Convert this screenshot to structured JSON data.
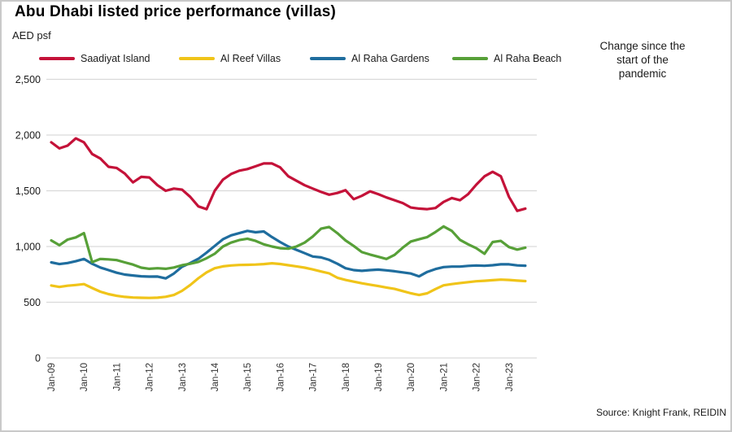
{
  "header": {
    "title": "Abu Dhabi listed price performance (villas)",
    "units_label": "AED psf",
    "note": "Change since the start of the pandemic"
  },
  "footer": {
    "source": "Source: Knight Frank, REIDIN"
  },
  "chart_data": {
    "type": "line",
    "title": "Abu Dhabi listed price performance (villas)",
    "ylabel": "AED psf",
    "ylim": [
      0,
      2500
    ],
    "grid": "horizontal",
    "legend_position": "top",
    "frequency": "quarterly",
    "annotation": "Change since the start of the pandemic",
    "y_ticks": [
      0,
      500,
      1000,
      1500,
      2000,
      2500
    ],
    "y_tick_labels": [
      "0",
      "500",
      "1,000",
      "1,500",
      "2,000",
      "2,500"
    ],
    "x_tick_labels": [
      "Jan-09",
      "Jan-10",
      "Jan-11",
      "Jan-12",
      "Jan-13",
      "Jan-14",
      "Jan-15",
      "Jan-16",
      "Jan-17",
      "Jan-18",
      "Jan-19",
      "Jan-20",
      "Jan-21",
      "Jan-22",
      "Jan-23"
    ],
    "dates": [
      "Jan-09",
      "Apr-09",
      "Jul-09",
      "Oct-09",
      "Jan-10",
      "Apr-10",
      "Jul-10",
      "Oct-10",
      "Jan-11",
      "Apr-11",
      "Jul-11",
      "Oct-11",
      "Jan-12",
      "Apr-12",
      "Jul-12",
      "Oct-12",
      "Jan-13",
      "Apr-13",
      "Jul-13",
      "Oct-13",
      "Jan-14",
      "Apr-14",
      "Jul-14",
      "Oct-14",
      "Jan-15",
      "Apr-15",
      "Jul-15",
      "Oct-15",
      "Jan-16",
      "Apr-16",
      "Jul-16",
      "Oct-16",
      "Jan-17",
      "Apr-17",
      "Jul-17",
      "Oct-17",
      "Jan-18",
      "Apr-18",
      "Jul-18",
      "Oct-18",
      "Jan-19",
      "Apr-19",
      "Jul-19",
      "Oct-19",
      "Jan-20",
      "Apr-20",
      "Jul-20",
      "Oct-20",
      "Jan-21",
      "Apr-21",
      "Jul-21",
      "Oct-21",
      "Jan-22",
      "Apr-22",
      "Jul-22",
      "Oct-22",
      "Jan-23",
      "Apr-23",
      "Jul-23"
    ],
    "series": [
      {
        "name": "Saadiyat Island",
        "color": "#c41239",
        "values": [
          1935,
          1880,
          1905,
          1970,
          1935,
          1830,
          1790,
          1715,
          1705,
          1655,
          1575,
          1625,
          1620,
          1550,
          1500,
          1520,
          1510,
          1445,
          1360,
          1335,
          1500,
          1600,
          1650,
          1680,
          1695,
          1720,
          1745,
          1745,
          1710,
          1630,
          1590,
          1550,
          1520,
          1490,
          1465,
          1480,
          1505,
          1425,
          1455,
          1495,
          1470,
          1440,
          1415,
          1390,
          1350,
          1340,
          1335,
          1345,
          1400,
          1435,
          1415,
          1470,
          1555,
          1630,
          1670,
          1630,
          1445,
          1320,
          1340
        ]
      },
      {
        "name": "Al Reef Villas",
        "color": "#f0c419",
        "values": [
          650,
          637,
          648,
          655,
          663,
          628,
          595,
          573,
          558,
          548,
          542,
          540,
          539,
          541,
          549,
          565,
          602,
          655,
          715,
          768,
          805,
          822,
          830,
          834,
          836,
          838,
          842,
          850,
          843,
          832,
          822,
          810,
          794,
          776,
          759,
          720,
          700,
          685,
          670,
          658,
          645,
          632,
          620,
          600,
          580,
          565,
          580,
          618,
          652,
          663,
          672,
          680,
          688,
          693,
          698,
          703,
          700,
          694,
          690
        ]
      },
      {
        "name": "Al Raha Gardens",
        "color": "#1f6d9e",
        "values": [
          858,
          842,
          852,
          868,
          888,
          845,
          812,
          788,
          765,
          748,
          740,
          733,
          730,
          731,
          714,
          758,
          818,
          852,
          890,
          945,
          1005,
          1065,
          1100,
          1120,
          1140,
          1128,
          1135,
          1085,
          1040,
          1000,
          970,
          940,
          910,
          902,
          880,
          845,
          805,
          788,
          782,
          788,
          793,
          786,
          778,
          768,
          758,
          732,
          772,
          798,
          815,
          820,
          820,
          826,
          830,
          827,
          832,
          840,
          840,
          831,
          828
        ]
      },
      {
        "name": "Al Raha Beach",
        "color": "#57a038",
        "values": [
          1055,
          1012,
          1062,
          1082,
          1120,
          860,
          888,
          885,
          878,
          858,
          838,
          810,
          800,
          805,
          800,
          812,
          832,
          845,
          862,
          895,
          935,
          1000,
          1035,
          1058,
          1070,
          1050,
          1020,
          1000,
          985,
          980,
          1000,
          1035,
          1090,
          1160,
          1175,
          1120,
          1055,
          1005,
          950,
          928,
          908,
          888,
          925,
          990,
          1045,
          1065,
          1085,
          1130,
          1180,
          1140,
          1060,
          1020,
          985,
          935,
          1040,
          1050,
          995,
          972,
          990
        ]
      }
    ]
  }
}
